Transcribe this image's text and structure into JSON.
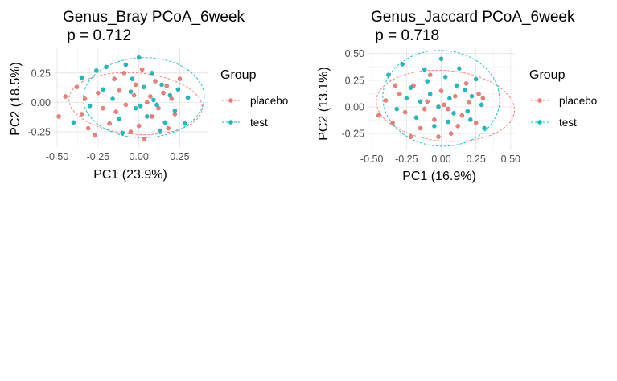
{
  "chart_data": [
    {
      "type": "scatter",
      "title": "Genus_Bray PCoA_6week",
      "subtitle": " p = 0.712",
      "xlabel": "PC1 (23.9%)",
      "ylabel": "PC2 (18.5%)",
      "xlim": [
        -0.52,
        0.42
      ],
      "ylim": [
        -0.38,
        0.46
      ],
      "xticks": [
        -0.5,
        -0.25,
        0.0,
        0.25
      ],
      "xtick_labels": [
        "-0.50",
        "-0.25",
        "0.00",
        "0.25"
      ],
      "yticks": [
        -0.25,
        0.0,
        0.25
      ],
      "ytick_labels": [
        "-0.25",
        "0.00",
        "0.25"
      ],
      "grid": true,
      "legend": {
        "title": "Group",
        "position": "right"
      },
      "series": [
        {
          "name": "placebo",
          "color": "#F8766D",
          "ellipse": {
            "cx": -0.02,
            "cy": -0.01,
            "rx": 0.41,
            "ry": 0.26,
            "angle": -8
          },
          "points": [
            [
              -0.49,
              -0.12
            ],
            [
              -0.38,
              0.13
            ],
            [
              -0.33,
              0.03
            ],
            [
              -0.35,
              -0.1
            ],
            [
              -0.31,
              -0.22
            ],
            [
              -0.25,
              0.08
            ],
            [
              -0.22,
              -0.05
            ],
            [
              -0.18,
              -0.18
            ],
            [
              -0.15,
              0.2
            ],
            [
              -0.12,
              0.1
            ],
            [
              -0.08,
              -0.02
            ],
            [
              -0.05,
              -0.25
            ],
            [
              -0.02,
              0.15
            ],
            [
              0.0,
              -0.2
            ],
            [
              0.02,
              0.28
            ],
            [
              0.05,
              0.0
            ],
            [
              0.08,
              -0.12
            ],
            [
              0.1,
              0.18
            ],
            [
              0.12,
              -0.05
            ],
            [
              0.15,
              0.08
            ],
            [
              0.18,
              -0.22
            ],
            [
              0.2,
              0.03
            ],
            [
              0.22,
              -0.1
            ],
            [
              0.25,
              0.2
            ],
            [
              -0.45,
              0.05
            ],
            [
              -0.27,
              -0.28
            ],
            [
              -0.09,
              0.25
            ],
            [
              0.03,
              -0.31
            ],
            [
              0.17,
              0.14
            ],
            [
              0.07,
              0.05
            ],
            [
              -0.14,
              -0.08
            ],
            [
              -0.03,
              0.06
            ]
          ]
        },
        {
          "name": "test",
          "color": "#00BFC4",
          "ellipse": {
            "cx": 0.03,
            "cy": 0.04,
            "rx": 0.37,
            "ry": 0.34,
            "angle": 5
          },
          "points": [
            [
              -0.4,
              -0.17
            ],
            [
              -0.35,
              0.21
            ],
            [
              -0.3,
              -0.03
            ],
            [
              -0.26,
              0.27
            ],
            [
              -0.2,
              0.3
            ],
            [
              -0.16,
              0.03
            ],
            [
              -0.12,
              -0.14
            ],
            [
              -0.08,
              0.32
            ],
            [
              -0.05,
              0.09
            ],
            [
              -0.02,
              -0.05
            ],
            [
              0.0,
              0.38
            ],
            [
              0.03,
              0.13
            ],
            [
              0.05,
              -0.12
            ],
            [
              0.08,
              0.25
            ],
            [
              0.11,
              -0.02
            ],
            [
              0.14,
              0.15
            ],
            [
              0.16,
              -0.17
            ],
            [
              0.19,
              0.06
            ],
            [
              0.22,
              -0.07
            ],
            [
              0.24,
              0.11
            ],
            [
              0.28,
              -0.18
            ],
            [
              -0.1,
              -0.26
            ],
            [
              0.09,
              0.02
            ],
            [
              -0.04,
              0.2
            ],
            [
              0.13,
              -0.24
            ],
            [
              -0.22,
              0.11
            ],
            [
              0.3,
              0.04
            ],
            [
              0.01,
              -0.03
            ]
          ]
        }
      ]
    },
    {
      "type": "scatter",
      "title": "Genus_Jaccard PCoA_6week",
      "subtitle": " p = 0.718",
      "xlabel": "PC1 (16.9%)",
      "ylabel": "PC2 (13.1%)",
      "xlim": [
        -0.53,
        0.53
      ],
      "ylim": [
        -0.4,
        0.55
      ],
      "xticks": [
        -0.5,
        -0.25,
        0.0,
        0.25,
        0.5
      ],
      "xtick_labels": [
        "-0.50",
        "-0.25",
        "0.00",
        "0.25",
        "0.50"
      ],
      "yticks": [
        -0.25,
        0.0,
        0.25,
        0.5
      ],
      "ytick_labels": [
        "-0.25",
        "0.00",
        "0.25",
        "0.50"
      ],
      "grid": true,
      "legend": {
        "title": "Group",
        "position": "right"
      },
      "series": [
        {
          "name": "placebo",
          "color": "#F8766D",
          "ellipse": {
            "cx": 0.03,
            "cy": 0.01,
            "rx": 0.5,
            "ry": 0.33,
            "angle": -8
          },
          "points": [
            [
              -0.45,
              -0.08
            ],
            [
              -0.4,
              0.06
            ],
            [
              -0.35,
              -0.15
            ],
            [
              -0.3,
              0.12
            ],
            [
              -0.26,
              -0.05
            ],
            [
              -0.2,
              0.2
            ],
            [
              -0.15,
              -0.2
            ],
            [
              -0.1,
              0.05
            ],
            [
              -0.05,
              -0.12
            ],
            [
              0.0,
              0.15
            ],
            [
              0.05,
              -0.02
            ],
            [
              0.1,
              0.1
            ],
            [
              0.15,
              -0.08
            ],
            [
              0.2,
              0.04
            ],
            [
              0.25,
              -0.15
            ],
            [
              0.3,
              0.08
            ],
            [
              -0.22,
              -0.28
            ],
            [
              -0.08,
              0.3
            ],
            [
              0.07,
              -0.25
            ],
            [
              0.18,
              0.22
            ],
            [
              -0.33,
              0.2
            ],
            [
              0.02,
              0.02
            ],
            [
              -0.12,
              -0.02
            ],
            [
              0.12,
              -0.18
            ],
            [
              0.27,
              0.12
            ],
            [
              -0.02,
              -0.28
            ]
          ]
        },
        {
          "name": "test",
          "color": "#00BFC4",
          "ellipse": {
            "cx": 0.0,
            "cy": 0.08,
            "rx": 0.42,
            "ry": 0.45,
            "angle": 10
          },
          "points": [
            [
              -0.38,
              0.3
            ],
            [
              -0.32,
              -0.02
            ],
            [
              -0.28,
              0.4
            ],
            [
              -0.22,
              0.18
            ],
            [
              -0.18,
              -0.1
            ],
            [
              -0.12,
              0.35
            ],
            [
              -0.08,
              0.12
            ],
            [
              -0.05,
              -0.18
            ],
            [
              0.0,
              0.45
            ],
            [
              0.03,
              0.28
            ],
            [
              0.06,
              0.08
            ],
            [
              0.09,
              -0.06
            ],
            [
              0.13,
              0.36
            ],
            [
              0.17,
              0.16
            ],
            [
              0.21,
              -0.12
            ],
            [
              0.25,
              0.26
            ],
            [
              0.29,
              0.02
            ],
            [
              0.31,
              -0.2
            ],
            [
              -0.15,
              0.05
            ],
            [
              0.11,
              0.2
            ],
            [
              -0.02,
              0.0
            ],
            [
              0.19,
              -0.04
            ],
            [
              -0.25,
              0.08
            ],
            [
              0.05,
              -0.14
            ],
            [
              0.22,
              0.1
            ],
            [
              -0.1,
              0.24
            ]
          ]
        }
      ]
    }
  ]
}
